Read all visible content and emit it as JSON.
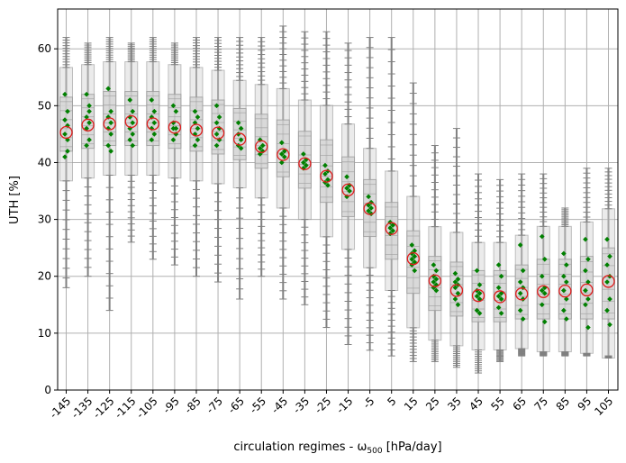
{
  "chart_data": {
    "type": "box",
    "xlabel": "circulation regimes - ω500 [hPa/day]",
    "xlabel_parts": {
      "main": "circulation regimes - ω",
      "sub": "500",
      "unit": " [hPa/day]"
    },
    "ylabel": "UTH [%]",
    "ylim": [
      0,
      67
    ],
    "yticks": [
      0,
      10,
      20,
      30,
      40,
      50,
      60
    ],
    "grid": true,
    "categories": [
      "-145",
      "-135",
      "-125",
      "-115",
      "-105",
      "-95",
      "-85",
      "-75",
      "-65",
      "-55",
      "-45",
      "-35",
      "-25",
      "-15",
      "-5",
      "5",
      "15",
      "25",
      "35",
      "45",
      "55",
      "65",
      "75",
      "85",
      "95",
      "105"
    ],
    "median": [
      45.3,
      46.6,
      46.8,
      47.2,
      46.8,
      46.2,
      45.7,
      45.2,
      44.1,
      42.8,
      41.4,
      39.8,
      37.6,
      35.2,
      31.9,
      28.4,
      23.1,
      19.2,
      17.5,
      16.6,
      16.4,
      16.9,
      17.3,
      17.4,
      17.6,
      19.1
    ],
    "q1": [
      42,
      42.5,
      43,
      43,
      43,
      42.5,
      42,
      41.5,
      40.5,
      39,
      37.5,
      35.5,
      33,
      30.5,
      27,
      23,
      17,
      14,
      13,
      12,
      12,
      12.5,
      12.5,
      12.5,
      12.5,
      12.5
    ],
    "q3": [
      51.5,
      52,
      52.5,
      52.5,
      52.5,
      52,
      51.5,
      51,
      49.5,
      48.5,
      47.5,
      45.5,
      44,
      41,
      37,
      33,
      28,
      23.5,
      22.5,
      21,
      21,
      22,
      23,
      23,
      23.5,
      25
    ],
    "whisker_low": [
      18,
      20,
      14,
      26,
      23,
      22,
      20,
      19,
      16,
      20,
      16,
      15,
      11,
      8,
      7,
      6,
      5,
      5,
      4,
      3,
      5,
      6,
      6,
      6,
      6,
      6
    ],
    "whisker_high": [
      62,
      61,
      62,
      61,
      62,
      61,
      62,
      62,
      62,
      62,
      64,
      63,
      63,
      61,
      62,
      62,
      54,
      43,
      46,
      38,
      37,
      38,
      38,
      32,
      39,
      39
    ],
    "ensemble_points": [
      [
        52,
        49,
        47.5,
        46.5,
        45,
        42,
        41,
        44
      ],
      [
        52,
        49,
        48,
        47,
        46,
        44,
        43,
        50
      ],
      [
        53,
        49,
        48,
        47,
        46,
        45,
        43,
        42
      ],
      [
        51,
        49,
        48,
        47,
        46,
        45,
        44,
        43
      ],
      [
        51,
        49,
        48,
        47,
        46,
        45,
        44
      ],
      [
        50,
        49,
        47,
        46,
        46,
        45,
        44
      ],
      [
        49,
        48,
        47,
        46,
        45,
        44,
        43
      ],
      [
        50,
        48,
        47,
        46,
        45,
        44,
        43
      ],
      [
        47,
        46,
        45,
        44,
        43,
        42.5
      ],
      [
        44,
        43,
        42.5,
        42,
        41.5
      ],
      [
        43.5,
        42,
        41.5,
        41,
        40
      ],
      [
        41.5,
        40.5,
        40,
        39.5,
        39
      ],
      [
        39.5,
        38.5,
        38,
        37,
        36.5,
        36
      ],
      [
        37.5,
        36,
        35.5,
        35,
        34
      ],
      [
        34,
        33,
        32.5,
        32,
        31.5,
        31
      ],
      [
        29.5,
        29,
        28.5,
        28,
        27.5
      ],
      [
        25.5,
        24.5,
        24,
        23.5,
        23,
        22.5,
        22,
        21
      ],
      [
        22,
        21,
        20,
        19.5,
        19,
        18.5,
        18,
        17.5
      ],
      [
        20.5,
        19.5,
        19,
        18.5,
        18,
        17,
        16,
        15
      ],
      [
        21,
        18.5,
        17.5,
        17,
        16.5,
        16,
        14,
        13.5
      ],
      [
        22,
        20,
        18,
        17,
        16.5,
        16,
        14.5,
        13.5
      ],
      [
        25.5,
        21,
        19,
        18,
        17,
        16,
        14,
        12.5
      ],
      [
        27,
        23,
        20,
        18,
        17.5,
        17,
        15,
        12
      ],
      [
        24,
        22,
        20,
        19,
        17.5,
        16,
        14,
        12.5
      ],
      [
        26.5,
        23,
        21,
        19,
        17.5,
        16,
        15,
        11
      ],
      [
        26.5,
        23.5,
        22,
        20,
        19,
        16,
        14,
        11.5
      ]
    ],
    "colors": {
      "box_fill": "#d3d3d3",
      "box_edge": "#9a9a9a",
      "whisker": "#808080",
      "points": "#008000",
      "median_marker": "#e01c1c",
      "grid": "#b0b0b0"
    }
  }
}
